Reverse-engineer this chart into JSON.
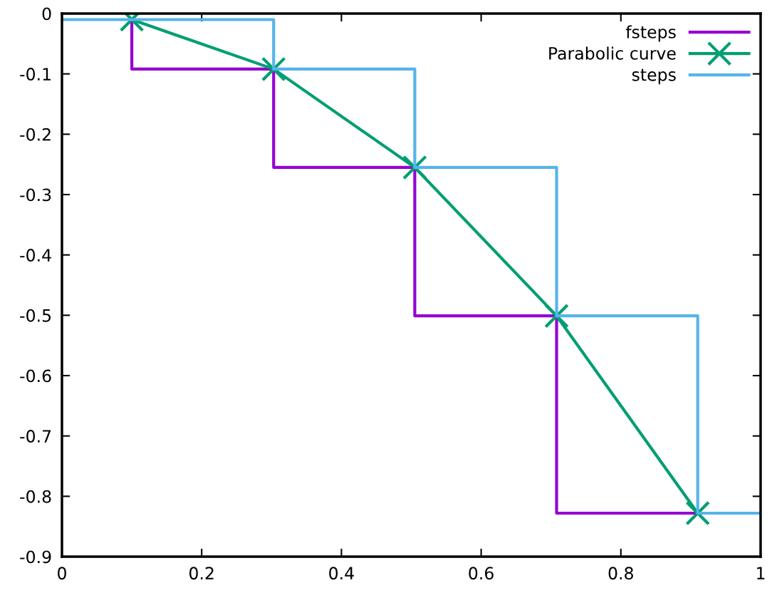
{
  "chart_data": {
    "type": "step",
    "xlim": [
      0,
      1
    ],
    "ylim": [
      -0.9,
      0
    ],
    "xticks": [
      0,
      0.2,
      0.4,
      0.6,
      0.8,
      1
    ],
    "yticks": [
      0,
      -0.1,
      -0.2,
      -0.3,
      -0.4,
      -0.5,
      -0.6,
      -0.7,
      -0.8,
      -0.9
    ],
    "grid": false,
    "legend": "top right",
    "series": [
      {
        "name": "fsteps",
        "color": "#9400d3",
        "x": [
          0.1,
          0.1,
          0.303,
          0.505,
          0.708,
          0.91
        ],
        "values": [
          -0.01,
          -0.092,
          -0.255,
          -0.501,
          -0.828,
          -0.828
        ]
      },
      {
        "name": "Parabolic curve",
        "type": "line",
        "color": "#009e73",
        "marker": "cross",
        "x": [
          0.1,
          0.303,
          0.505,
          0.708,
          0.91
        ],
        "values": [
          -0.01,
          -0.092,
          -0.255,
          -0.501,
          -0.828
        ]
      },
      {
        "name": "steps",
        "color": "#56b4e9",
        "x": [
          0,
          0.303,
          0.505,
          0.708,
          0.91,
          1
        ],
        "values": [
          -0.01,
          -0.092,
          -0.255,
          -0.501,
          -0.828,
          -0.828
        ]
      }
    ]
  }
}
